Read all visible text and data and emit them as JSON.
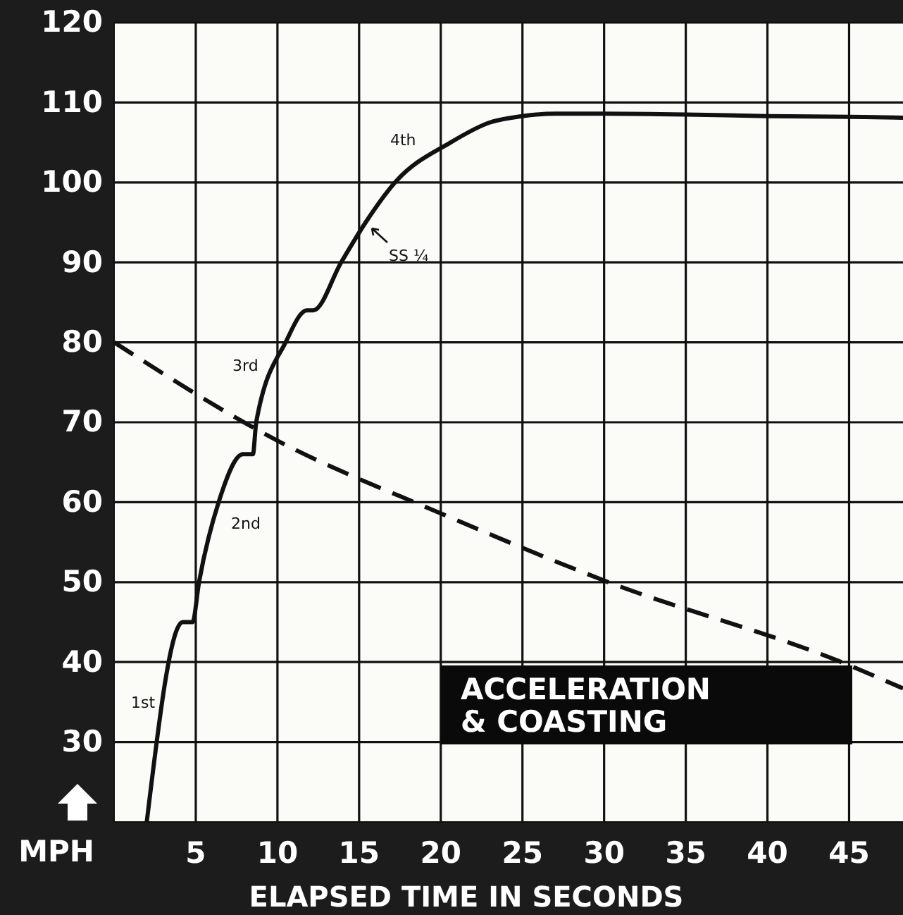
{
  "chart_data": {
    "type": "line",
    "xlabel": "ELAPSED TIME IN SECONDS",
    "ylabel": "MPH",
    "xlim": [
      0,
      48.3
    ],
    "ylim": [
      20,
      120
    ],
    "xticks": [
      5,
      10,
      15,
      20,
      25,
      30,
      35,
      40,
      45
    ],
    "yticks": [
      30,
      40,
      50,
      60,
      70,
      80,
      90,
      100,
      110,
      120
    ],
    "grid": true,
    "marker": "none",
    "series": [
      {
        "color": "#111111",
        "line_style": "solid",
        "x": [
          2.0,
          4.2,
          4.8,
          5.2,
          6.4,
          7.9,
          8.5,
          8.7,
          10.5,
          11.8,
          12.2,
          13.9,
          15.4,
          17.2,
          20.6,
          23,
          25,
          27,
          30,
          35,
          40,
          45,
          48.3
        ],
        "values": [
          20,
          45,
          45,
          50,
          60,
          66,
          66,
          70,
          80,
          84,
          84,
          90,
          95,
          100,
          105,
          107.5,
          108.3,
          108.6,
          108.6,
          108.5,
          108.3,
          108.2,
          108.1
        ]
      },
      {
        "color": "#111111",
        "line_style": "dashed",
        "x": [
          0,
          10,
          20,
          30,
          45,
          48.3
        ],
        "values": [
          80,
          67.7,
          58.6,
          50.2,
          39.6,
          36.7
        ]
      }
    ],
    "annotations": [
      "1st",
      "2nd",
      "3rd",
      "4th",
      "SS ¼",
      "ACCELERATION\n& COASTING"
    ]
  }
}
